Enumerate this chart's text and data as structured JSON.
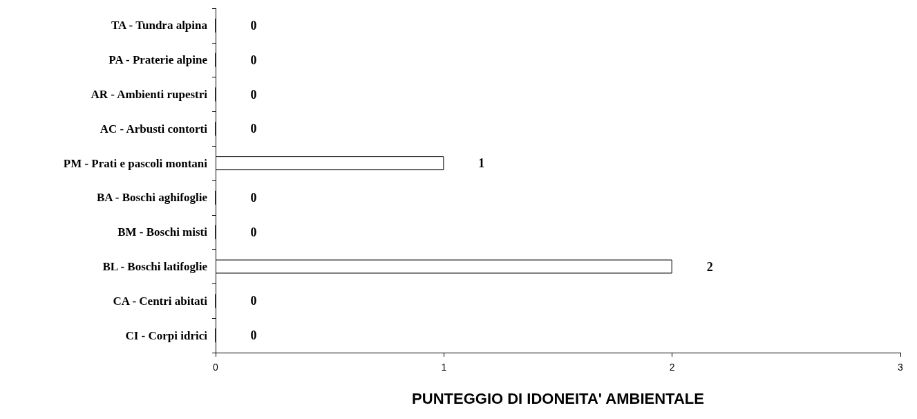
{
  "chart_data": {
    "type": "bar",
    "orientation": "horizontal",
    "categories": [
      "TA - Tundra alpina",
      "PA - Praterie alpine",
      "AR - Ambienti rupestri",
      "AC - Arbusti contorti",
      "PM - Prati e pascoli montani",
      "BA - Boschi aghifoglie",
      "BM - Boschi misti",
      "BL - Boschi latifoglie",
      "CA - Centri abitati",
      "CI - Corpi idrici"
    ],
    "values": [
      0,
      0,
      0,
      0,
      1,
      0,
      0,
      2,
      0,
      0
    ],
    "color": "#ffffff",
    "xlabel": "PUNTEGGIO DI IDONEITA' AMBIENTALE",
    "xlim": [
      0,
      3
    ],
    "xticks": [
      0,
      1,
      2,
      3
    ],
    "data_labels": true,
    "grid": false
  }
}
